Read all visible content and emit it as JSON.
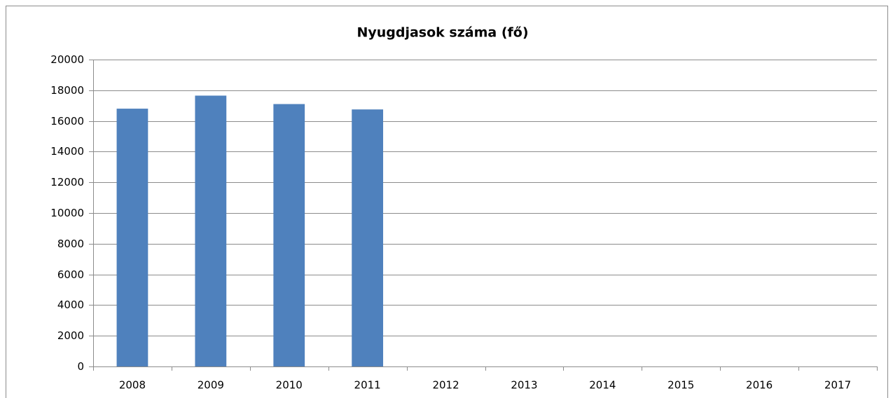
{
  "chart_data": {
    "type": "bar",
    "title": "Nyugdjasok száma (fő)",
    "categories": [
      "2008",
      "2009",
      "2010",
      "2011",
      "2012",
      "2013",
      "2014",
      "2015",
      "2016",
      "2017"
    ],
    "values": [
      16800,
      17650,
      17100,
      16750,
      null,
      null,
      null,
      null,
      null,
      null
    ],
    "color": "#4f81bd",
    "ylim": [
      0,
      20000
    ],
    "yticks": [
      0,
      2000,
      4000,
      6000,
      8000,
      10000,
      12000,
      14000,
      16000,
      18000,
      20000
    ],
    "grid": true
  }
}
